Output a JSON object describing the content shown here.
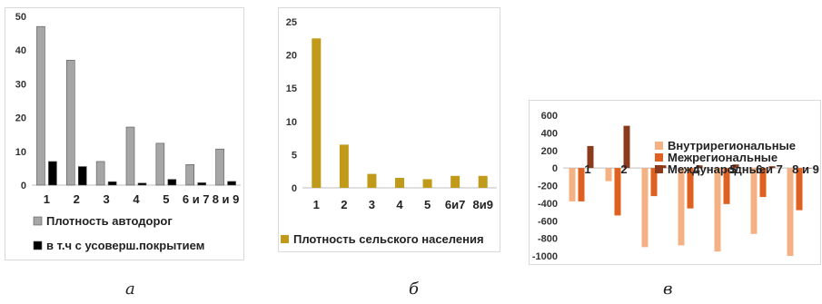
{
  "captions": [
    "а",
    "б",
    "в"
  ],
  "chart_data": [
    {
      "type": "bar",
      "categories": [
        "1",
        "2",
        "3",
        "4",
        "5",
        "6 и 7",
        "8 и 9"
      ],
      "series": [
        {
          "name": "Плотность автодорог",
          "values": [
            47,
            37,
            7,
            17.2,
            12.4,
            6.1,
            10.7
          ],
          "color": "#a6a6a6"
        },
        {
          "name": "в т.ч с усоверш.покрытием",
          "values": [
            7,
            5.5,
            1,
            0.6,
            1.7,
            0.7,
            1.1
          ],
          "color": "#000000"
        }
      ],
      "ylim": [
        0,
        50
      ],
      "yticks": [
        0,
        10,
        20,
        30,
        40,
        50
      ],
      "legend": "bottom",
      "grid": false
    },
    {
      "type": "bar",
      "categories": [
        "1",
        "2",
        "3",
        "4",
        "5",
        "6и7",
        "8и9"
      ],
      "series": [
        {
          "name": "Плотность сельского населения",
          "values": [
            22.5,
            6.5,
            2.1,
            1.5,
            1.3,
            1.8,
            1.8
          ],
          "color": "#c19a1a"
        }
      ],
      "ylim": [
        0,
        25
      ],
      "yticks": [
        0,
        5,
        10,
        15,
        20,
        25
      ],
      "legend": "bottom",
      "grid": false
    },
    {
      "type": "bar",
      "categories": [
        "1",
        "2",
        "3",
        "4",
        "5",
        "6 и 7",
        "8 и 9"
      ],
      "series": [
        {
          "name": "Внутрирегиональные",
          "values": [
            -380,
            -150,
            -900,
            -880,
            -950,
            -750,
            -1000
          ],
          "color": "#f4b183"
        },
        {
          "name": "Межрегиональные",
          "values": [
            -380,
            -540,
            -320,
            -460,
            -410,
            -330,
            -480
          ],
          "color": "#e06020"
        },
        {
          "name": "Международные",
          "values": [
            250,
            480,
            30,
            30,
            40,
            20,
            0
          ],
          "color": "#8b3a1b"
        }
      ],
      "ylim": [
        -1000,
        600
      ],
      "yticks": [
        -1000,
        -800,
        -600,
        -400,
        -200,
        0,
        200,
        400,
        600
      ],
      "legend": "top-right",
      "grid": false
    }
  ]
}
